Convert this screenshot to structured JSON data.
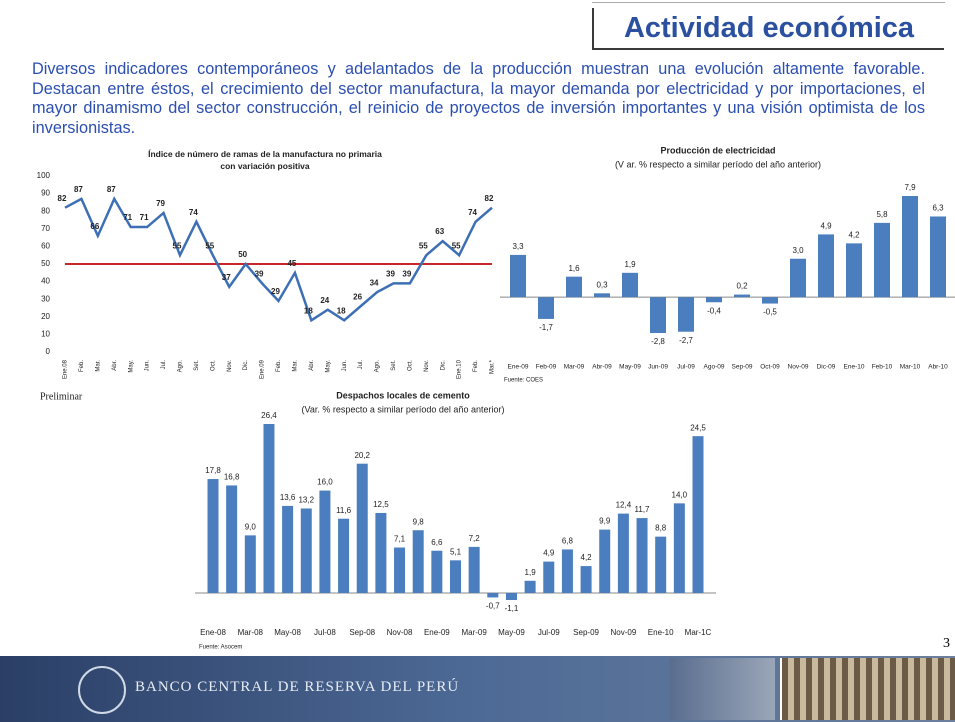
{
  "slide": {
    "title": "Actividad económica",
    "body": "Diversos indicadores contemporáneos y adelantados de la producción muestran una evolución altamente favorable. Destacan entre éstos, el crecimiento del sector manufactura, la mayor demanda por electricidad y por importaciones, el mayor dinamismo del sector construcción, el reinicio de proyectos de inversión importantes y una visión optimista de los inversionistas.",
    "page_number": 3,
    "footer": "BANCO CENTRAL DE RESERVA DEL PERÚ"
  },
  "chart_data": [
    {
      "type": "line",
      "title": "Índice de número de ramas de la manufactura no primaria con variación positiva",
      "categories": [
        "Ene.08",
        "Feb.",
        "Mar.",
        "Abr.",
        "May.",
        "Jun.",
        "Jul.",
        "Ago.",
        "Set.",
        "Oct.",
        "Nov.",
        "Dic.",
        "Ene.09",
        "Feb.",
        "Mar.",
        "Abr.",
        "May.",
        "Jun.",
        "Jul.",
        "Ago.",
        "Set.",
        "Oct.",
        "Nov.",
        "Dic.",
        "Ene.10",
        "Feb.",
        "Mar.*"
      ],
      "values": [
        82,
        87,
        66,
        87,
        71,
        71,
        79,
        55,
        74,
        55,
        37,
        50,
        39,
        29,
        45,
        18,
        24,
        18,
        26,
        34,
        39,
        39,
        55,
        63,
        55,
        74,
        82
      ],
      "color": "#3d6fb5",
      "reference_line": 50,
      "reference_color": "#c8262b",
      "ylim": [
        0,
        100
      ],
      "yticks": [
        0,
        10,
        20,
        30,
        40,
        50,
        60,
        70,
        80,
        90,
        100
      ],
      "note": "Preliminar"
    },
    {
      "type": "bar",
      "title": "Producción de electricidad",
      "subtitle": "(V ar. % respecto a similar período del año anterior)",
      "categories": [
        "Ene-09",
        "Feb-09",
        "Mar-09",
        "Abr-09",
        "May-09",
        "Jun-09",
        "Jul-09",
        "Ago-09",
        "Sep-09",
        "Oct-09",
        "Nov-09",
        "Dic-09",
        "Ene-10",
        "Feb-10",
        "Mar-10",
        "Abr-10"
      ],
      "values": [
        3.3,
        -1.7,
        1.6,
        0.3,
        1.9,
        -2.8,
        -2.7,
        -0.4,
        0.2,
        -0.5,
        3.0,
        4.9,
        4.2,
        5.8,
        7.9,
        6.3
      ],
      "value_labels": [
        "3,3",
        "-1,7",
        "1,6",
        "0,3",
        "1,9",
        "-2,8",
        "-2,7",
        "-0,4",
        "0,2",
        "-0,5",
        "3,0",
        "4,9",
        "4,2",
        "5,8",
        "7,9",
        "6,3"
      ],
      "color": "#4a7ebf",
      "source": "Fuente:  COES"
    },
    {
      "type": "bar",
      "title": "Despachos locales de cemento",
      "subtitle": "(Var. % respecto a similar período del año anterior)",
      "categories": [
        "Ene-08",
        null,
        "Mar-08",
        null,
        "May-08",
        null,
        "Jul-08",
        null,
        "Sep-08",
        null,
        "Nov-08",
        null,
        "Ene-09",
        null,
        "Mar-09",
        null,
        "May-09",
        null,
        "Jul-09",
        null,
        "Sep-09",
        null,
        "Nov-09",
        null,
        "Ene-10",
        null,
        "Mar-1C"
      ],
      "values": [
        17.8,
        16.8,
        9.0,
        26.4,
        13.6,
        13.2,
        16.0,
        11.6,
        20.2,
        12.5,
        7.1,
        9.8,
        6.6,
        5.1,
        7.2,
        -0.7,
        -1.1,
        1.9,
        4.9,
        6.8,
        4.2,
        9.9,
        12.4,
        11.7,
        8.8,
        14.0,
        24.5
      ],
      "value_labels": [
        "17,8",
        "16,8",
        "9,0",
        "26,4",
        "13,6",
        "13,2",
        "16,0",
        "11,6",
        "20,2",
        "12,5",
        "7,1",
        "9,8",
        "6,6",
        "5,1",
        "7,2",
        "-0,7",
        "-1,1",
        "1,9",
        "4,9",
        "6,8",
        "4,2",
        "9,9",
        "12,4",
        "11,7",
        "8,8",
        "14,0",
        "24,5"
      ],
      "color": "#4a7ebf",
      "source": "Fuente:  Asocem"
    }
  ]
}
